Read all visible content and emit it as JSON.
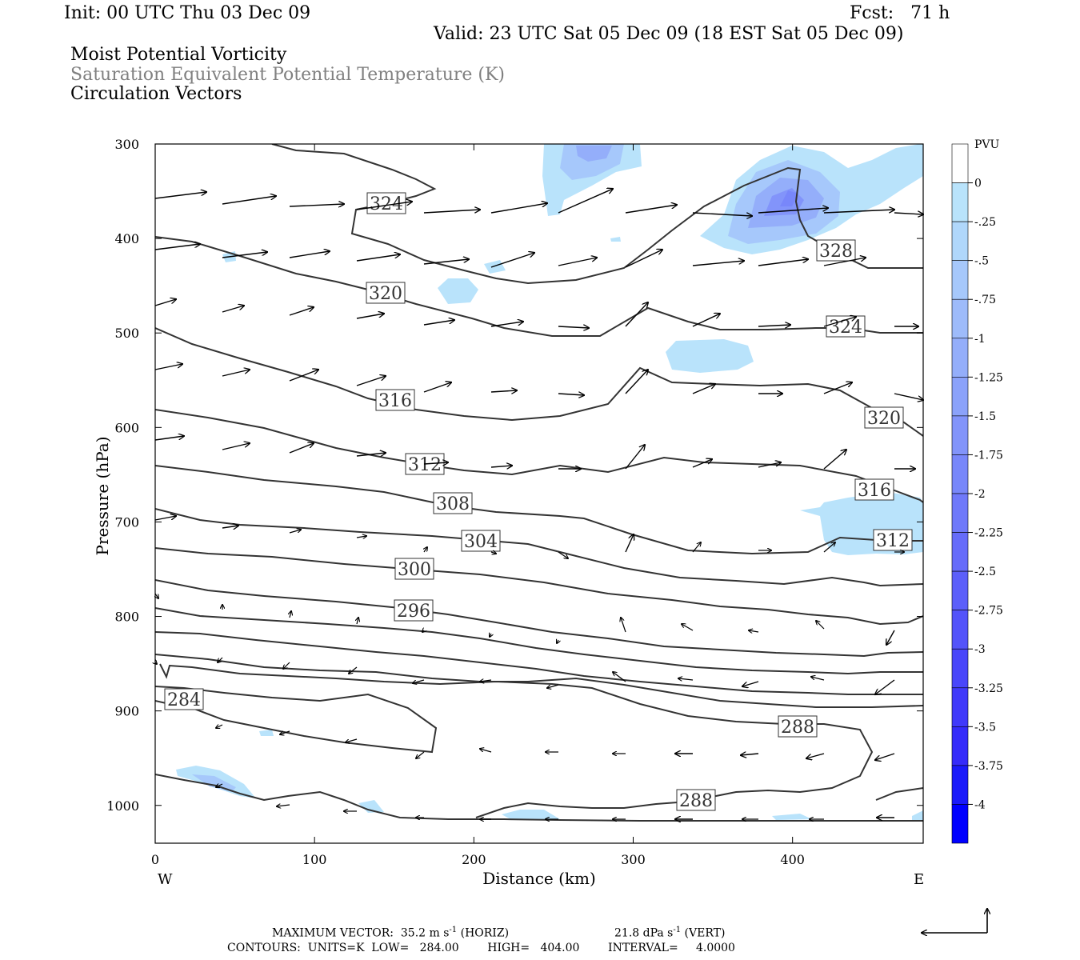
{
  "header": {
    "init": "Init: 00 UTC Thu 03 Dec 09",
    "fcst": "Fcst:   71 h",
    "valid": "Valid: 23 UTC Sat 05 Dec 09 (18 EST Sat 05 Dec 09)"
  },
  "titles": {
    "line1": "Moist Potential Vorticity",
    "line2": "Saturation Equivalent Potential Temperature (K)",
    "line3": "Circulation Vectors"
  },
  "chart_data": {
    "type": "contour-cross-section",
    "xlabel": "Distance (km)",
    "ylabel": "Pressure (hPa)",
    "x_ticks": [
      0,
      100,
      200,
      300,
      400
    ],
    "x_range": [
      0,
      482
    ],
    "y_ticks": [
      300,
      400,
      500,
      600,
      700,
      800,
      900,
      1000
    ],
    "y_range": [
      300,
      1040
    ],
    "left_end_label": "W",
    "right_end_label": "E",
    "colorbar": {
      "title": "PVU",
      "labels": [
        "0",
        "-.25",
        "-.5",
        "-.75",
        "-1",
        "-1.25",
        "-1.5",
        "-1.75",
        "-2",
        "-2.25",
        "-2.5",
        "-2.75",
        "-3",
        "-3.25",
        "-3.5",
        "-3.75",
        "-4"
      ],
      "colors": [
        "#ffffff",
        "#b9e3fb",
        "#b0d7fb",
        "#a6c8fb",
        "#9ebbfa",
        "#94aefa",
        "#8ba2fa",
        "#8294fa",
        "#7887fa",
        "#6f79fa",
        "#666cfa",
        "#5c5ffa",
        "#5353fa",
        "#4946fa",
        "#4039fa",
        "#352bfa",
        "#1a1afa",
        "#0000ff"
      ]
    },
    "contour_labels": [
      "324",
      "320",
      "316",
      "312",
      "308",
      "304",
      "300",
      "296",
      "284",
      "328",
      "324",
      "320",
      "316",
      "312",
      "288",
      "288"
    ],
    "contour_levels_K": [
      284,
      288,
      292,
      296,
      300,
      304,
      308,
      312,
      316,
      320,
      324,
      328
    ],
    "footer": {
      "max_vector": "MAXIMUM VECTOR:  35.2 m s",
      "max_vector_exp": "-1",
      "max_vector_horiz": " (HORIZ)",
      "max_vector_vert": "21.8 dPa s",
      "max_vector_vert_exp": "-1",
      "max_vector_vert_tail": " (VERT)",
      "contours": "CONTOURS:  UNITS=K  LOW=   284.00        HIGH=   404.00        INTERVAL=     4.0000"
    }
  }
}
